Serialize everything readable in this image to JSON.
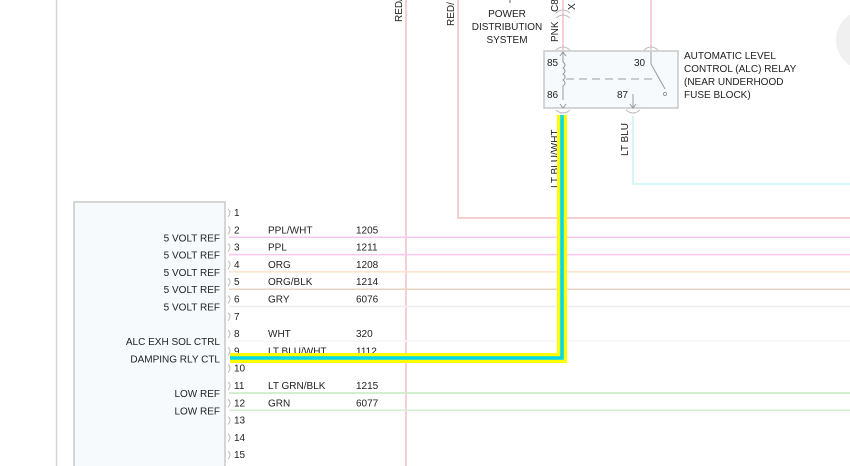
{
  "top_labels": {
    "red_wire_1": "RED/",
    "red_wire_2": "RED/",
    "power_distribution": [
      "POWER",
      "DISTRIBUTION",
      "SYSTEM"
    ],
    "pnk": "PNK",
    "connector": "C8",
    "x_label": "X"
  },
  "relay": {
    "title": [
      "AUTOMATIC LEVEL",
      "CONTROL (ALC) RELAY",
      "(NEAR UNDERHOOD",
      "FUSE BLOCK)"
    ],
    "pins": {
      "p85": "85",
      "p86": "86",
      "p30": "30",
      "p87": "87"
    },
    "out_wire_86": "LT BLU/WHT",
    "out_wire_87": "LT BLU"
  },
  "module": {
    "pins": [
      {
        "num": "1",
        "func": "",
        "color": "",
        "circuit": "",
        "wire": ""
      },
      {
        "num": "2",
        "func": "5 VOLT REF",
        "color": "PPL/WHT",
        "circuit": "1205",
        "wire": "#f9c6f0"
      },
      {
        "num": "3",
        "func": "5 VOLT REF",
        "color": "PPL",
        "circuit": "1211",
        "wire": "#f9c6f0"
      },
      {
        "num": "4",
        "func": "5 VOLT REF",
        "color": "ORG",
        "circuit": "1208",
        "wire": "#fbe3cc"
      },
      {
        "num": "5",
        "func": "5 VOLT REF",
        "color": "ORG/BLK",
        "circuit": "1214",
        "wire": "#e8d2c0"
      },
      {
        "num": "6",
        "func": "5 VOLT REF",
        "color": "GRY",
        "circuit": "6076",
        "wire": "#eeeeee"
      },
      {
        "num": "7",
        "func": "",
        "color": "",
        "circuit": "",
        "wire": ""
      },
      {
        "num": "8",
        "func": "ALC EXH SOL CTRL",
        "color": "WHT",
        "circuit": "320",
        "wire": "#f6f6f6"
      },
      {
        "num": "9",
        "func": "DAMPING RLY CTL",
        "color": "LT BLU/WHT",
        "circuit": "1112",
        "wire": "highlight"
      },
      {
        "num": "10",
        "func": "",
        "color": "",
        "circuit": "",
        "wire": ""
      },
      {
        "num": "11",
        "func": "LOW REF",
        "color": "LT GRN/BLK",
        "circuit": "1215",
        "wire": "#c6e8c0"
      },
      {
        "num": "12",
        "func": "LOW REF",
        "color": "GRN",
        "circuit": "6077",
        "wire": "#d6eed2"
      },
      {
        "num": "13",
        "func": "",
        "color": "",
        "circuit": "",
        "wire": ""
      },
      {
        "num": "14",
        "func": "",
        "color": "",
        "circuit": "",
        "wire": ""
      },
      {
        "num": "15",
        "func": "",
        "color": "",
        "circuit": "",
        "wire": ""
      }
    ]
  },
  "colors": {
    "red_wire": "#f4c0c0",
    "pink_wire": "#f4c0c8",
    "lt_blu_wire": "#c8f4f8",
    "highlight_outer": "#ffff00",
    "highlight_inner": "#00d8f0",
    "component_fill": "#f6fafd",
    "component_border": "#c8c8c8"
  }
}
